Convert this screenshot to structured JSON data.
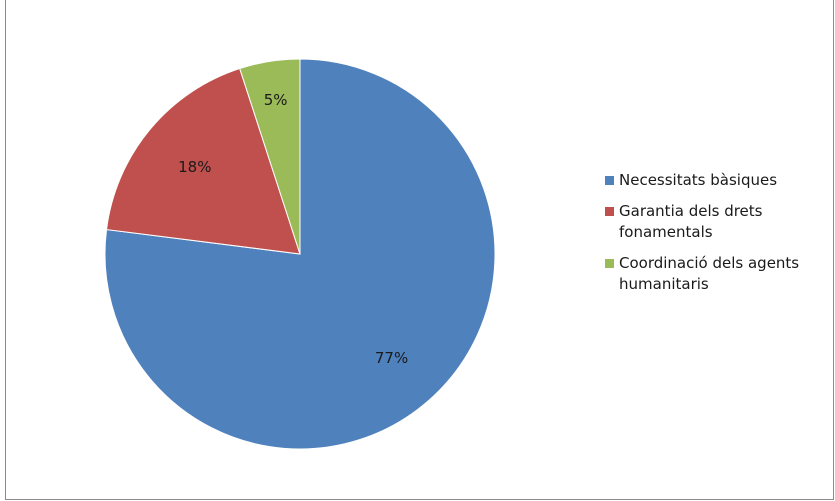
{
  "chart_data": {
    "type": "pie",
    "title": "",
    "slices": [
      {
        "label": "Necessitats bàsiques",
        "value": 77,
        "value_label": "77%",
        "color": "#4F81BD"
      },
      {
        "label": "Garantia dels drets fonamentals",
        "value": 18,
        "value_label": "18%",
        "color": "#C0504D"
      },
      {
        "label": "Coordinació dels agents humanitaris",
        "value": 5,
        "value_label": "5%",
        "color": "#9BBB59"
      }
    ],
    "legend_position": "right",
    "start_angle": "12 o'clock",
    "direction": "clockwise"
  }
}
